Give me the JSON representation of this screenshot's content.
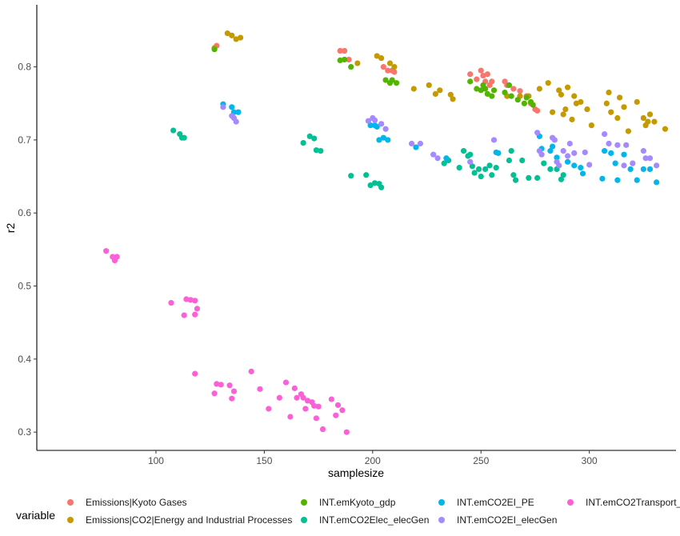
{
  "chart_data": {
    "type": "scatter",
    "xlabel": "samplesize",
    "ylabel": "r2",
    "xlim": [
      45,
      340
    ],
    "ylim": [
      0.275,
      0.885
    ],
    "x_ticks": [
      100,
      150,
      200,
      250,
      300
    ],
    "y_ticks": [
      0.3,
      0.4,
      0.5,
      0.6,
      0.7,
      0.8
    ],
    "x_tick_labels": [
      "100",
      "150",
      "200",
      "250",
      "300"
    ],
    "y_tick_labels": [
      "0.3",
      "0.4",
      "0.5",
      "0.6",
      "0.7",
      "0.8"
    ],
    "grid": false,
    "legend_position": "bottom",
    "legend_title": "variable",
    "series": [
      {
        "name": "Emissions|Kyoto Gases",
        "color": "#F8766D",
        "points": [
          [
            128,
            0.829
          ],
          [
            185,
            0.822
          ],
          [
            187,
            0.822
          ],
          [
            189,
            0.81
          ],
          [
            205,
            0.8
          ],
          [
            207,
            0.795
          ],
          [
            209,
            0.795
          ],
          [
            210,
            0.793
          ],
          [
            245,
            0.79
          ],
          [
            248,
            0.783
          ],
          [
            250,
            0.795
          ],
          [
            251,
            0.788
          ],
          [
            252,
            0.78
          ],
          [
            253,
            0.79
          ],
          [
            254,
            0.775
          ],
          [
            255,
            0.78
          ],
          [
            261,
            0.78
          ],
          [
            262,
            0.775
          ],
          [
            265,
            0.77
          ],
          [
            268,
            0.767
          ],
          [
            271,
            0.76
          ],
          [
            273,
            0.75
          ],
          [
            275,
            0.742
          ],
          [
            276,
            0.74
          ]
        ]
      },
      {
        "name": "Emissions|CO2|Energy and Industrial Processes",
        "color": "#C49A00",
        "points": [
          [
            127,
            0.826
          ],
          [
            133,
            0.846
          ],
          [
            135,
            0.843
          ],
          [
            137,
            0.838
          ],
          [
            139,
            0.84
          ],
          [
            193,
            0.805
          ],
          [
            202,
            0.815
          ],
          [
            204,
            0.812
          ],
          [
            208,
            0.805
          ],
          [
            210,
            0.8
          ],
          [
            219,
            0.77
          ],
          [
            226,
            0.775
          ],
          [
            229,
            0.763
          ],
          [
            231,
            0.768
          ],
          [
            236,
            0.762
          ],
          [
            237,
            0.756
          ],
          [
            262,
            0.76
          ],
          [
            268,
            0.76
          ],
          [
            272,
            0.76
          ],
          [
            277,
            0.77
          ],
          [
            281,
            0.778
          ],
          [
            283,
            0.738
          ],
          [
            286,
            0.768
          ],
          [
            287,
            0.762
          ],
          [
            288,
            0.735
          ],
          [
            289,
            0.742
          ],
          [
            290,
            0.772
          ],
          [
            292,
            0.728
          ],
          [
            293,
            0.76
          ],
          [
            294,
            0.75
          ],
          [
            296,
            0.752
          ],
          [
            299,
            0.742
          ],
          [
            301,
            0.72
          ],
          [
            308,
            0.75
          ],
          [
            309,
            0.765
          ],
          [
            310,
            0.738
          ],
          [
            313,
            0.73
          ],
          [
            314,
            0.758
          ],
          [
            316,
            0.745
          ],
          [
            318,
            0.712
          ],
          [
            322,
            0.752
          ],
          [
            325,
            0.73
          ],
          [
            326,
            0.72
          ],
          [
            327,
            0.725
          ],
          [
            328,
            0.735
          ],
          [
            330,
            0.725
          ],
          [
            335,
            0.715
          ]
        ]
      },
      {
        "name": "INT.emKyoto_gdp",
        "color": "#53B400",
        "points": [
          [
            127,
            0.824
          ],
          [
            185,
            0.809
          ],
          [
            187,
            0.81
          ],
          [
            190,
            0.8
          ],
          [
            206,
            0.782
          ],
          [
            208,
            0.778
          ],
          [
            209,
            0.782
          ],
          [
            211,
            0.778
          ],
          [
            245,
            0.78
          ],
          [
            248,
            0.77
          ],
          [
            250,
            0.768
          ],
          [
            251,
            0.775
          ],
          [
            252,
            0.77
          ],
          [
            253,
            0.763
          ],
          [
            255,
            0.76
          ],
          [
            256,
            0.768
          ],
          [
            261,
            0.765
          ],
          [
            263,
            0.775
          ],
          [
            264,
            0.76
          ],
          [
            267,
            0.755
          ],
          [
            270,
            0.75
          ],
          [
            271,
            0.758
          ],
          [
            273,
            0.752
          ],
          [
            274,
            0.748
          ]
        ]
      },
      {
        "name": "INT.emCO2Elec_elecGen",
        "color": "#00C094",
        "points": [
          [
            108,
            0.713
          ],
          [
            111,
            0.708
          ],
          [
            112,
            0.703
          ],
          [
            113,
            0.703
          ],
          [
            168,
            0.696
          ],
          [
            171,
            0.705
          ],
          [
            173,
            0.702
          ],
          [
            174,
            0.686
          ],
          [
            176,
            0.685
          ],
          [
            190,
            0.651
          ],
          [
            197,
            0.652
          ],
          [
            199,
            0.638
          ],
          [
            201,
            0.641
          ],
          [
            203,
            0.64
          ],
          [
            204,
            0.635
          ],
          [
            233,
            0.668
          ],
          [
            235,
            0.672
          ],
          [
            240,
            0.662
          ],
          [
            242,
            0.685
          ],
          [
            244,
            0.678
          ],
          [
            245,
            0.68
          ],
          [
            246,
            0.664
          ],
          [
            247,
            0.655
          ],
          [
            249,
            0.66
          ],
          [
            250,
            0.65
          ],
          [
            252,
            0.66
          ],
          [
            254,
            0.665
          ],
          [
            255,
            0.652
          ],
          [
            257,
            0.662
          ],
          [
            263,
            0.672
          ],
          [
            264,
            0.685
          ],
          [
            265,
            0.652
          ],
          [
            266,
            0.645
          ],
          [
            269,
            0.672
          ],
          [
            272,
            0.648
          ],
          [
            276,
            0.648
          ],
          [
            279,
            0.668
          ],
          [
            282,
            0.66
          ],
          [
            285,
            0.66
          ],
          [
            287,
            0.646
          ],
          [
            288,
            0.652
          ]
        ]
      },
      {
        "name": "INT.emCO2EI_PE",
        "color": "#00B6EB",
        "points": [
          [
            131,
            0.749
          ],
          [
            135,
            0.745
          ],
          [
            136,
            0.738
          ],
          [
            138,
            0.738
          ],
          [
            199,
            0.72
          ],
          [
            201,
            0.72
          ],
          [
            202,
            0.718
          ],
          [
            203,
            0.7
          ],
          [
            205,
            0.703
          ],
          [
            207,
            0.7
          ],
          [
            220,
            0.69
          ],
          [
            234,
            0.675
          ],
          [
            257,
            0.683
          ],
          [
            258,
            0.682
          ],
          [
            277,
            0.705
          ],
          [
            278,
            0.688
          ],
          [
            282,
            0.685
          ],
          [
            283,
            0.691
          ],
          [
            285,
            0.676
          ],
          [
            290,
            0.67
          ],
          [
            293,
            0.665
          ],
          [
            296,
            0.662
          ],
          [
            297,
            0.654
          ],
          [
            306,
            0.647
          ],
          [
            307,
            0.685
          ],
          [
            310,
            0.682
          ],
          [
            312,
            0.668
          ],
          [
            313,
            0.645
          ],
          [
            316,
            0.68
          ],
          [
            319,
            0.66
          ],
          [
            322,
            0.645
          ],
          [
            325,
            0.66
          ],
          [
            328,
            0.66
          ],
          [
            331,
            0.642
          ]
        ]
      },
      {
        "name": "INT.emCO2EI_elecGen",
        "color": "#A58AFF",
        "points": [
          [
            131,
            0.745
          ],
          [
            135,
            0.733
          ],
          [
            136,
            0.73
          ],
          [
            137,
            0.725
          ],
          [
            198,
            0.726
          ],
          [
            200,
            0.73
          ],
          [
            201,
            0.727
          ],
          [
            204,
            0.722
          ],
          [
            206,
            0.715
          ],
          [
            218,
            0.695
          ],
          [
            222,
            0.695
          ],
          [
            228,
            0.68
          ],
          [
            230,
            0.675
          ],
          [
            245,
            0.67
          ],
          [
            256,
            0.7
          ],
          [
            276,
            0.71
          ],
          [
            277,
            0.685
          ],
          [
            278,
            0.68
          ],
          [
            283,
            0.703
          ],
          [
            284,
            0.7
          ],
          [
            285,
            0.67
          ],
          [
            286,
            0.665
          ],
          [
            288,
            0.685
          ],
          [
            290,
            0.678
          ],
          [
            291,
            0.695
          ],
          [
            293,
            0.682
          ],
          [
            298,
            0.683
          ],
          [
            300,
            0.666
          ],
          [
            307,
            0.708
          ],
          [
            309,
            0.695
          ],
          [
            313,
            0.693
          ],
          [
            316,
            0.665
          ],
          [
            317,
            0.693
          ],
          [
            320,
            0.668
          ],
          [
            325,
            0.685
          ],
          [
            326,
            0.675
          ],
          [
            328,
            0.675
          ],
          [
            331,
            0.665
          ]
        ]
      },
      {
        "name": "INT.emCO2Transport_",
        "color": "#FB61D7",
        "points": [
          [
            77,
            0.548
          ],
          [
            80,
            0.54
          ],
          [
            81,
            0.535
          ],
          [
            82,
            0.54
          ],
          [
            107,
            0.477
          ],
          [
            113,
            0.46
          ],
          [
            114,
            0.482
          ],
          [
            116,
            0.481
          ],
          [
            118,
            0.48
          ],
          [
            118,
            0.461
          ],
          [
            119,
            0.469
          ],
          [
            118,
            0.38
          ],
          [
            127,
            0.353
          ],
          [
            128,
            0.366
          ],
          [
            130,
            0.365
          ],
          [
            134,
            0.364
          ],
          [
            135,
            0.346
          ],
          [
            136,
            0.356
          ],
          [
            144,
            0.383
          ],
          [
            148,
            0.359
          ],
          [
            152,
            0.332
          ],
          [
            157,
            0.347
          ],
          [
            160,
            0.368
          ],
          [
            162,
            0.321
          ],
          [
            164,
            0.36
          ],
          [
            165,
            0.347
          ],
          [
            167,
            0.352
          ],
          [
            168,
            0.347
          ],
          [
            169,
            0.332
          ],
          [
            170,
            0.343
          ],
          [
            172,
            0.341
          ],
          [
            173,
            0.336
          ],
          [
            174,
            0.319
          ],
          [
            175,
            0.335
          ],
          [
            177,
            0.304
          ],
          [
            181,
            0.345
          ],
          [
            183,
            0.323
          ],
          [
            184,
            0.337
          ],
          [
            186,
            0.33
          ],
          [
            188,
            0.3
          ]
        ]
      }
    ]
  }
}
